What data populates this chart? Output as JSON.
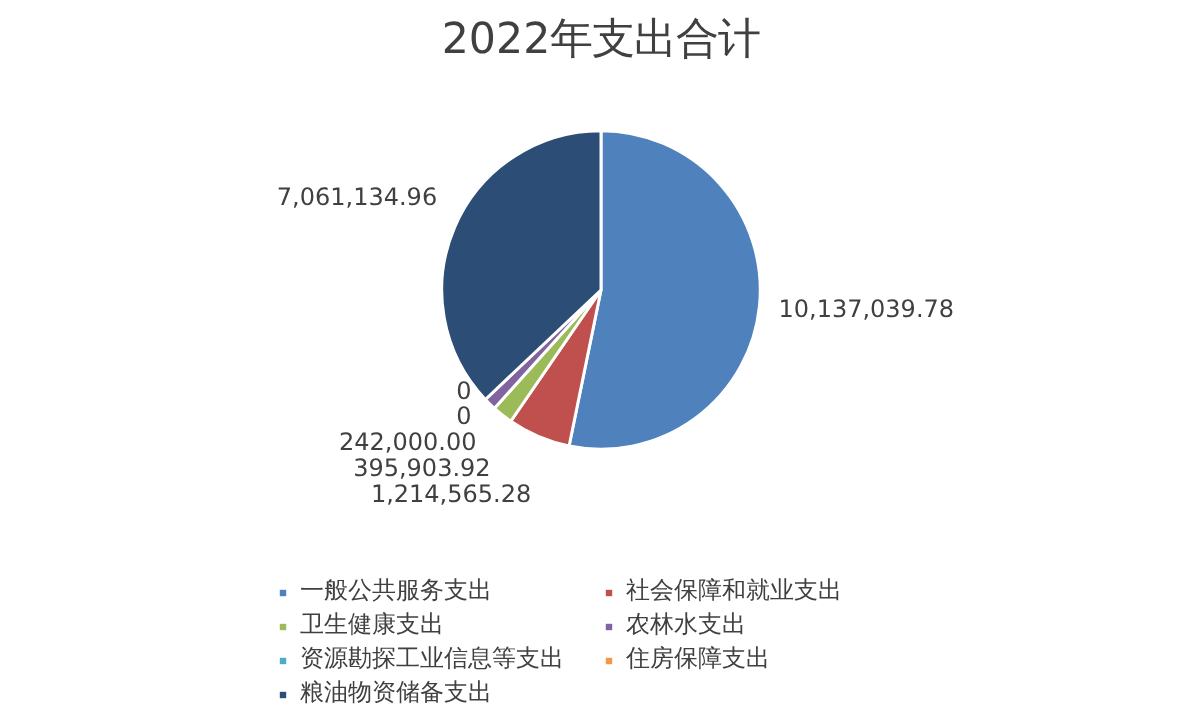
{
  "chart_data": {
    "type": "pie",
    "title": "2022年支出合计",
    "categories": [
      "一般公共服务支出",
      "社会保障和就业支出",
      "卫生健康支出",
      "农林水支出",
      "资源勘探工业信息等支出",
      "住房保障支出",
      "粮油物资储备支出"
    ],
    "values": [
      10137039.78,
      1214565.28,
      395903.92,
      242000.0,
      0,
      0,
      7061134.96
    ],
    "colors": [
      "#4f81bd",
      "#c0504d",
      "#9bbb59",
      "#8064a2",
      "#4bacc6",
      "#f79646",
      "#2c4d75"
    ],
    "value_labels": [
      "10,137,039.78",
      "1,214,565.28",
      "395,903.92",
      "242,000.00",
      "0",
      "0",
      "7,061,134.96"
    ],
    "data_labels": true,
    "legend": "bottom"
  }
}
